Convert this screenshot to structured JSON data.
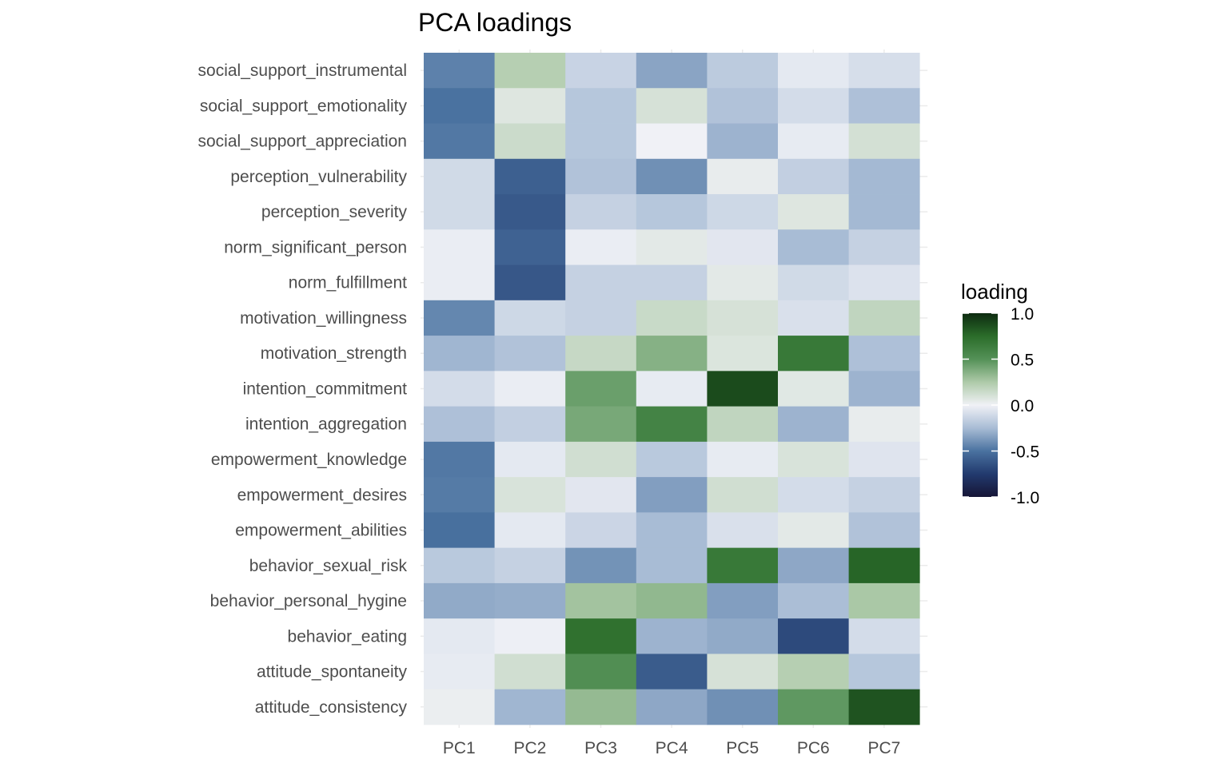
{
  "chart_data": {
    "type": "heatmap",
    "title": "PCA loadings",
    "xlabel": "",
    "ylabel": "",
    "columns": [
      "PC1",
      "PC2",
      "PC3",
      "PC4",
      "PC5",
      "PC6",
      "PC7"
    ],
    "rows": [
      "social_support_instrumental",
      "social_support_emotionality",
      "social_support_appreciation",
      "perception_vulnerability",
      "perception_severity",
      "norm_significant_person",
      "norm_fulfillment",
      "motivation_willingness",
      "motivation_strength",
      "intention_commitment",
      "intention_aggregation",
      "empowerment_knowledge",
      "empowerment_desires",
      "empowerment_abilities",
      "behavior_sexual_risk",
      "behavior_personal_hygine",
      "behavior_eating",
      "attitude_spontaneity",
      "attitude_consistency"
    ],
    "values": [
      [
        -0.45,
        0.22,
        -0.14,
        -0.33,
        -0.18,
        -0.04,
        -0.09
      ],
      [
        -0.5,
        0.07,
        -0.2,
        0.1,
        -0.22,
        -0.1,
        -0.23
      ],
      [
        -0.48,
        0.14,
        -0.2,
        0.0,
        -0.28,
        -0.03,
        0.11
      ],
      [
        -0.11,
        -0.58,
        -0.22,
        -0.4,
        0.03,
        -0.16,
        -0.26
      ],
      [
        -0.11,
        -0.61,
        -0.15,
        -0.2,
        -0.12,
        0.07,
        -0.26
      ],
      [
        -0.02,
        -0.57,
        -0.02,
        0.05,
        -0.05,
        -0.25,
        -0.15
      ],
      [
        -0.02,
        -0.62,
        -0.15,
        -0.15,
        0.05,
        -0.11,
        -0.07
      ],
      [
        -0.43,
        -0.12,
        -0.15,
        0.15,
        0.1,
        -0.08,
        0.18
      ],
      [
        -0.27,
        -0.22,
        0.16,
        0.36,
        0.08,
        0.67,
        -0.23
      ],
      [
        -0.1,
        -0.02,
        0.44,
        -0.03,
        0.88,
        0.06,
        -0.28
      ],
      [
        -0.23,
        -0.16,
        0.4,
        0.6,
        0.18,
        -0.28,
        0.03
      ],
      [
        -0.48,
        -0.04,
        0.12,
        -0.19,
        -0.03,
        0.09,
        -0.06
      ],
      [
        -0.47,
        0.09,
        -0.05,
        -0.35,
        0.12,
        -0.1,
        -0.15
      ],
      [
        -0.51,
        -0.04,
        -0.13,
        -0.25,
        -0.08,
        0.05,
        -0.22
      ],
      [
        -0.19,
        -0.15,
        -0.39,
        -0.25,
        0.67,
        -0.32,
        0.78
      ],
      [
        -0.31,
        -0.3,
        0.28,
        0.33,
        -0.35,
        -0.24,
        0.26
      ],
      [
        -0.04,
        -0.01,
        0.72,
        -0.28,
        -0.31,
        -0.68,
        -0.1
      ],
      [
        -0.03,
        0.12,
        0.52,
        -0.6,
        0.1,
        0.22,
        -0.2
      ],
      [
        0.02,
        -0.27,
        0.32,
        -0.32,
        -0.4,
        0.47,
        0.85
      ]
    ],
    "colorbar": {
      "title": "loading",
      "range": [
        -1.0,
        1.0
      ],
      "ticks": [
        1.0,
        0.5,
        0.0,
        -0.5,
        -1.0
      ],
      "tick_labels": [
        "1.0",
        "0.5",
        "0.0",
        "-0.5",
        "-1.0"
      ],
      "color_stops": [
        {
          "value": -1.0,
          "color": "#161536"
        },
        {
          "value": -0.75,
          "color": "#223a6e"
        },
        {
          "value": -0.5,
          "color": "#4a72a0"
        },
        {
          "value": -0.25,
          "color": "#a8bcd5"
        },
        {
          "value": 0.0,
          "color": "#f0f1f6"
        },
        {
          "value": 0.25,
          "color": "#aecaa9"
        },
        {
          "value": 0.5,
          "color": "#549157"
        },
        {
          "value": 0.75,
          "color": "#2b6d2a"
        },
        {
          "value": 1.0,
          "color": "#0d2b10"
        }
      ]
    },
    "legend_position": "right",
    "grid": true
  }
}
